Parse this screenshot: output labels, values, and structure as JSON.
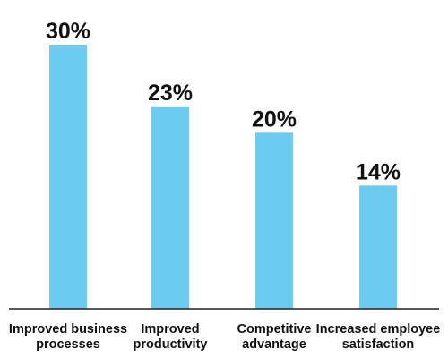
{
  "chart_data": {
    "type": "bar",
    "categories": [
      [
        "Improved business",
        "processes"
      ],
      [
        "Improved",
        "productivity"
      ],
      [
        "Competitive",
        "advantage"
      ],
      [
        "Increased employee",
        "satisfaction"
      ]
    ],
    "values": [
      30,
      23,
      20,
      14
    ],
    "data_labels": [
      "30%",
      "23%",
      "20%",
      "14%"
    ],
    "ylim": [
      0,
      30
    ],
    "grid": false,
    "bar_color": "#6ccbf0",
    "axis_color": "#222222"
  }
}
